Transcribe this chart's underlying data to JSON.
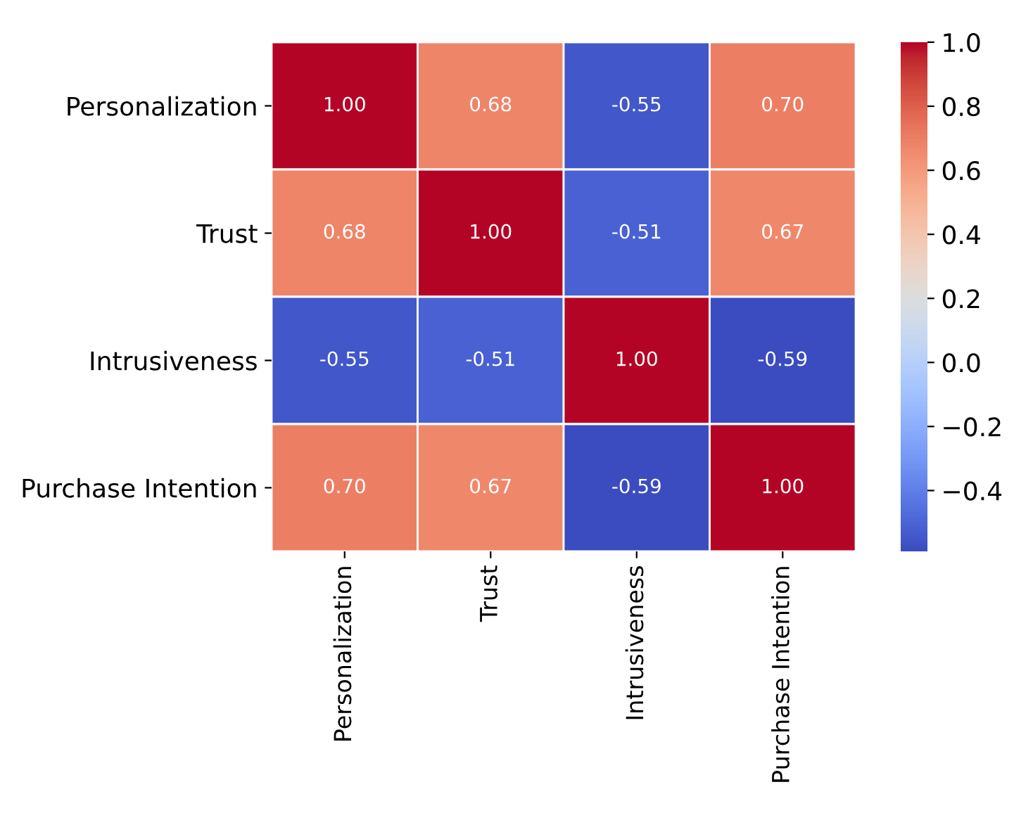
{
  "chart_data": {
    "type": "heatmap",
    "categories": [
      "Personalization",
      "Trust",
      "Intrusiveness",
      "Purchase Intention"
    ],
    "y_categories": [
      "Personalization",
      "Trust",
      "Intrusiveness",
      "Purchase Intention"
    ],
    "cells": [
      [
        1.0,
        0.68,
        -0.55,
        0.7
      ],
      [
        0.68,
        1.0,
        -0.51,
        0.67
      ],
      [
        -0.55,
        -0.51,
        1.0,
        -0.59
      ],
      [
        0.7,
        0.67,
        -0.59,
        1.0
      ]
    ],
    "cell_labels": [
      [
        "1.00",
        "0.68",
        "-0.55",
        "0.70"
      ],
      [
        "0.68",
        "1.00",
        "-0.51",
        "0.67"
      ],
      [
        "-0.55",
        "-0.51",
        "1.00",
        "-0.59"
      ],
      [
        "0.70",
        "0.67",
        "-0.59",
        "1.00"
      ]
    ],
    "clim": [
      -0.59,
      1.0
    ],
    "cticks": [
      {
        "value": -0.4,
        "label": "−0.4"
      },
      {
        "value": -0.2,
        "label": "−0.2"
      },
      {
        "value": 0,
        "label": "0.0"
      },
      0.2,
      0.4,
      0.6,
      0.8,
      {
        "value": 1,
        "label": "1.0"
      }
    ]
  }
}
